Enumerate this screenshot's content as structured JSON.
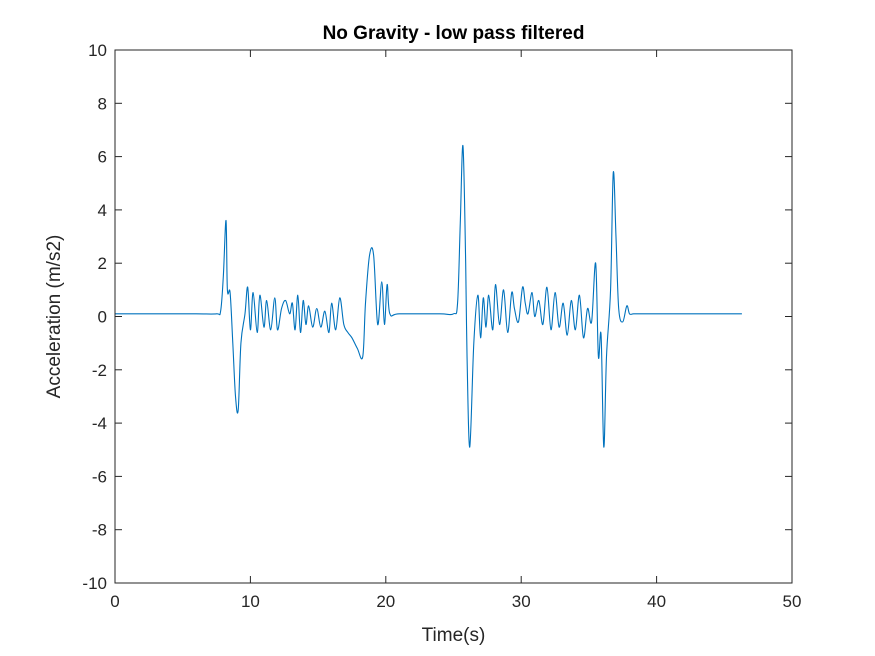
{
  "chart_data": {
    "type": "line",
    "title": "No Gravity - low pass filtered",
    "xlabel": "Time(s)",
    "ylabel": "Acceleration (m/s2)",
    "xlim": [
      0,
      50
    ],
    "ylim": [
      -10,
      10
    ],
    "xticks": [
      0,
      10,
      20,
      30,
      40,
      50
    ],
    "yticks": [
      -10,
      -8,
      -6,
      -4,
      -2,
      0,
      2,
      4,
      6,
      8,
      10
    ],
    "grid": false,
    "box": true,
    "series": [
      {
        "color": "#0072BD",
        "x": [
          0.0,
          3.0,
          6.0,
          7.5,
          7.8,
          8.0,
          8.2,
          8.3,
          8.5,
          8.7,
          8.9,
          9.1,
          9.3,
          9.6,
          9.8,
          10.0,
          10.2,
          10.5,
          10.7,
          11.0,
          11.2,
          11.5,
          11.8,
          12.0,
          12.3,
          12.6,
          12.9,
          13.1,
          13.3,
          13.5,
          13.7,
          13.9,
          14.1,
          14.3,
          14.6,
          14.9,
          15.2,
          15.5,
          15.8,
          16.0,
          16.3,
          16.6,
          16.9,
          17.2,
          17.5,
          17.9,
          18.3,
          18.5,
          18.8,
          19.1,
          19.4,
          19.7,
          19.9,
          20.1,
          20.3,
          21.0,
          24.0,
          25.0,
          25.3,
          25.5,
          25.7,
          25.9,
          26.0,
          26.2,
          26.5,
          26.8,
          27.0,
          27.2,
          27.4,
          27.6,
          27.9,
          28.1,
          28.4,
          28.7,
          29.0,
          29.3,
          29.5,
          29.8,
          30.1,
          30.3,
          30.5,
          30.8,
          31.0,
          31.3,
          31.6,
          31.9,
          32.2,
          32.5,
          32.8,
          33.1,
          33.4,
          33.7,
          34.0,
          34.3,
          34.6,
          34.9,
          35.2,
          35.5,
          35.7,
          35.9,
          36.1,
          36.3,
          36.6,
          36.8,
          37.0,
          37.2,
          37.5,
          37.8,
          38.0,
          38.3,
          39.0,
          42.0,
          46.3
        ],
        "y": [
          0.1,
          0.1,
          0.1,
          0.1,
          0.2,
          1.5,
          3.6,
          1.0,
          0.9,
          -1.0,
          -3.0,
          -3.5,
          -1.0,
          0.1,
          1.1,
          -0.5,
          0.9,
          -0.6,
          0.8,
          -0.4,
          0.6,
          -0.5,
          0.7,
          -0.5,
          0.3,
          0.6,
          0.1,
          0.5,
          -0.5,
          0.8,
          -0.6,
          0.6,
          -0.3,
          0.4,
          -0.4,
          0.3,
          -0.4,
          0.2,
          -0.6,
          0.5,
          -0.5,
          0.7,
          -0.3,
          -0.6,
          -0.8,
          -1.2,
          -1.5,
          0.5,
          2.3,
          2.3,
          -0.3,
          1.3,
          -0.3,
          1.2,
          0.1,
          0.1,
          0.1,
          0.1,
          0.5,
          3.5,
          6.4,
          2.0,
          -1.5,
          -4.9,
          -1.0,
          0.8,
          -0.8,
          0.7,
          -0.4,
          0.8,
          -0.5,
          1.2,
          -0.3,
          1.0,
          -0.6,
          0.9,
          0.3,
          -0.2,
          1.1,
          0.5,
          0.1,
          0.9,
          0.0,
          0.6,
          -0.3,
          1.1,
          -0.5,
          0.9,
          -0.4,
          0.5,
          -0.7,
          0.6,
          -0.5,
          0.8,
          -0.8,
          0.3,
          -0.2,
          2.0,
          -1.5,
          -0.7,
          -4.9,
          -1.5,
          1.0,
          5.4,
          3.0,
          0.3,
          -0.2,
          0.4,
          0.1,
          0.1,
          0.1,
          0.1,
          0.1
        ]
      }
    ]
  }
}
